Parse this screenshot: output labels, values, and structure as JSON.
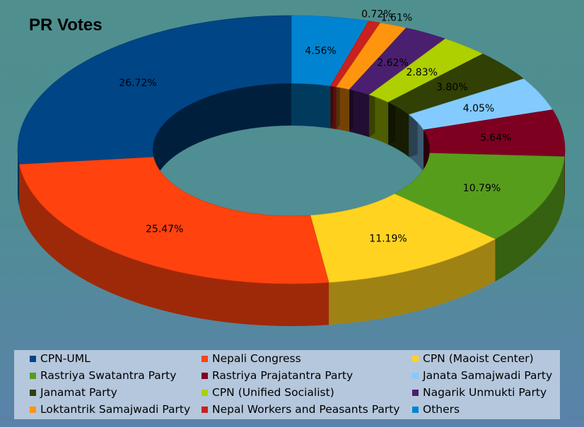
{
  "chart_data": {
    "type": "pie",
    "title": "PR Votes",
    "legend_position": "bottom",
    "series": [
      {
        "name": "Others",
        "value": 4.56,
        "label": "4.56%",
        "color": "#0084d1"
      },
      {
        "name": "Nepal Workers and Peasants Party",
        "value": 0.72,
        "label": "0.72%",
        "color": "#c9211e"
      },
      {
        "name": "Loktantrik Samajwadi Party",
        "value": 1.61,
        "label": "1.61%",
        "color": "#ff950e"
      },
      {
        "name": "Nagarik Unmukti Party",
        "value": 2.62,
        "label": "2.62%",
        "color": "#4b1f6f"
      },
      {
        "name": "CPN (Unified Socialist)",
        "value": 2.83,
        "label": "2.83%",
        "color": "#aecf00"
      },
      {
        "name": "Janamat Party",
        "value": 3.8,
        "label": "3.80%",
        "color": "#314004"
      },
      {
        "name": "Janata Samajwadi Party",
        "value": 4.05,
        "label": "4.05%",
        "color": "#83caff"
      },
      {
        "name": "Rastriya Prajatantra Party",
        "value": 5.64,
        "label": "5.64%",
        "color": "#7e0021"
      },
      {
        "name": "Rastriya Swatantra Party",
        "value": 10.79,
        "label": "10.79%",
        "color": "#579d1c"
      },
      {
        "name": "CPN (Maoist Center)",
        "value": 11.19,
        "label": "11.19%",
        "color": "#ffd320"
      },
      {
        "name": "Nepali Congress",
        "value": 25.47,
        "label": "25.47%",
        "color": "#ff420e"
      },
      {
        "name": "CPN-UML",
        "value": 26.72,
        "label": "26.72%",
        "color": "#004586"
      }
    ],
    "legend_order": [
      "CPN-UML",
      "Nepali Congress",
      "CPN (Maoist Center)",
      "Rastriya Swatantra Party",
      "Rastriya Prajatantra Party",
      "Janata Samajwadi Party",
      "Janamat Party",
      "CPN (Unified Socialist)",
      "Nagarik Unmukti Party",
      "Loktantrik Samajwadi Party",
      "Nepal Workers and Peasants Party",
      "Others"
    ]
  }
}
